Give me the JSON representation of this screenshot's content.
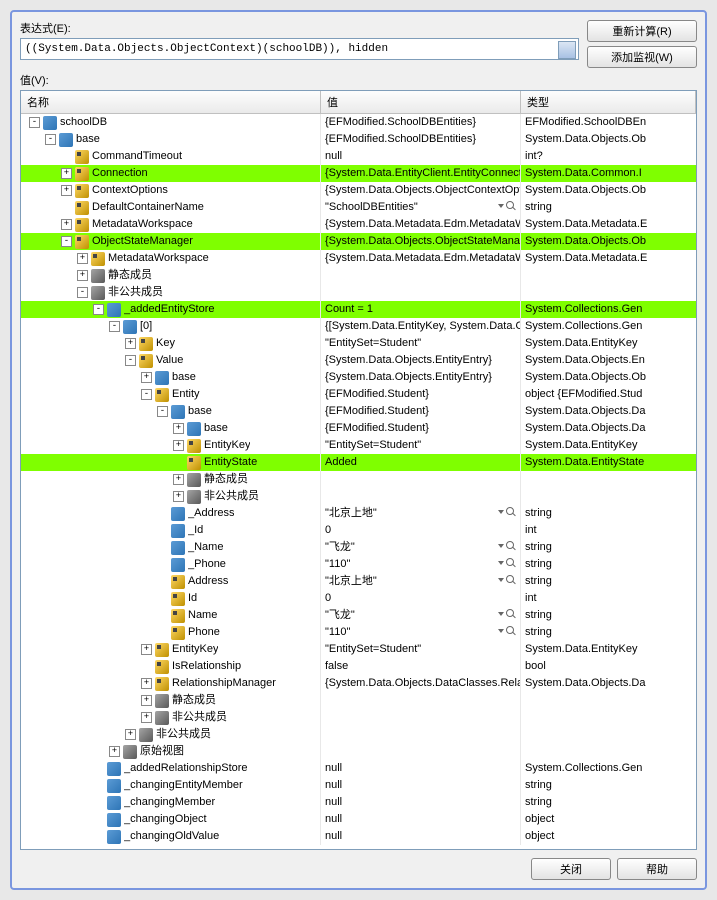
{
  "labels": {
    "expression": "表达式(E):",
    "value": "值(V):",
    "recalculate": "重新计算(R)",
    "addwatch": "添加监视(W)",
    "close": "关闭",
    "help": "帮助"
  },
  "expression_text": "((System.Data.Objects.ObjectContext)(schoolDB)), hidden",
  "columns": {
    "name": "名称",
    "value": "值",
    "type": "类型"
  },
  "highlight_color": "#7fff00",
  "rows": [
    {
      "depth": 0,
      "exp": "-",
      "icon": "field",
      "name": "schoolDB",
      "value": "{EFModified.SchoolDBEntities}",
      "type": "EFModified.SchoolDBEn"
    },
    {
      "depth": 1,
      "exp": "-",
      "icon": "field",
      "name": "base",
      "value": "{EFModified.SchoolDBEntities}",
      "type": "System.Data.Objects.Ob"
    },
    {
      "depth": 2,
      "exp": "",
      "icon": "prop",
      "name": "CommandTimeout",
      "value": "null",
      "type": "int?"
    },
    {
      "depth": 2,
      "exp": "+",
      "icon": "prop",
      "name": "Connection",
      "value": "{System.Data.EntityClient.EntityConnecti",
      "type": "System.Data.Common.I",
      "hl": true
    },
    {
      "depth": 2,
      "exp": "+",
      "icon": "prop",
      "name": "ContextOptions",
      "value": "{System.Data.Objects.ObjectContextOpti",
      "type": "System.Data.Objects.Ob"
    },
    {
      "depth": 2,
      "exp": "",
      "icon": "prop",
      "name": "DefaultContainerName",
      "value": "\"SchoolDBEntities\"",
      "type": "string",
      "mag": true
    },
    {
      "depth": 2,
      "exp": "+",
      "icon": "prop",
      "name": "MetadataWorkspace",
      "value": "{System.Data.Metadata.Edm.MetadataW",
      "type": "System.Data.Metadata.E"
    },
    {
      "depth": 2,
      "exp": "-",
      "icon": "prop",
      "name": "ObjectStateManager",
      "value": "{System.Data.Objects.ObjectStateManag",
      "type": "System.Data.Objects.Ob",
      "hl": true
    },
    {
      "depth": 3,
      "exp": "+",
      "icon": "prop",
      "name": "MetadataWorkspace",
      "value": "{System.Data.Metadata.Edm.MetadataW",
      "type": "System.Data.Metadata.E"
    },
    {
      "depth": 3,
      "exp": "+",
      "icon": "category",
      "name": "静态成员",
      "value": "",
      "type": ""
    },
    {
      "depth": 3,
      "exp": "-",
      "icon": "category",
      "name": "非公共成员",
      "value": "",
      "type": ""
    },
    {
      "depth": 4,
      "exp": "-",
      "icon": "field",
      "name": "_addedEntityStore",
      "value": "Count = 1",
      "type": "System.Collections.Gen",
      "hl": true
    },
    {
      "depth": 5,
      "exp": "-",
      "icon": "field",
      "name": "[0]",
      "value": "{[System.Data.EntityKey, System.Data.Ob",
      "type": "System.Collections.Gen"
    },
    {
      "depth": 6,
      "exp": "+",
      "icon": "prop",
      "name": "Key",
      "value": "\"EntitySet=Student\"",
      "type": "System.Data.EntityKey"
    },
    {
      "depth": 6,
      "exp": "-",
      "icon": "prop",
      "name": "Value",
      "value": "{System.Data.Objects.EntityEntry}",
      "type": "System.Data.Objects.En"
    },
    {
      "depth": 7,
      "exp": "+",
      "icon": "field",
      "name": "base",
      "value": "{System.Data.Objects.EntityEntry}",
      "type": "System.Data.Objects.Ob"
    },
    {
      "depth": 7,
      "exp": "-",
      "icon": "prop",
      "name": "Entity",
      "value": "{EFModified.Student}",
      "type": "object {EFModified.Stud"
    },
    {
      "depth": 8,
      "exp": "-",
      "icon": "field",
      "name": "base",
      "value": "{EFModified.Student}",
      "type": "System.Data.Objects.Da"
    },
    {
      "depth": 9,
      "exp": "+",
      "icon": "field",
      "name": "base",
      "value": "{EFModified.Student}",
      "type": "System.Data.Objects.Da"
    },
    {
      "depth": 9,
      "exp": "+",
      "icon": "prop",
      "name": "EntityKey",
      "value": "\"EntitySet=Student\"",
      "type": "System.Data.EntityKey"
    },
    {
      "depth": 9,
      "exp": "",
      "icon": "prop",
      "name": "EntityState",
      "value": "Added",
      "type": "System.Data.EntityState",
      "hl": true
    },
    {
      "depth": 9,
      "exp": "+",
      "icon": "category",
      "name": "静态成员",
      "value": "",
      "type": ""
    },
    {
      "depth": 9,
      "exp": "+",
      "icon": "category",
      "name": "非公共成员",
      "value": "",
      "type": ""
    },
    {
      "depth": 8,
      "exp": "",
      "icon": "field",
      "name": "_Address",
      "value": "\"北京上地\"",
      "type": "string",
      "mag": true
    },
    {
      "depth": 8,
      "exp": "",
      "icon": "field",
      "name": "_Id",
      "value": "0",
      "type": "int"
    },
    {
      "depth": 8,
      "exp": "",
      "icon": "field",
      "name": "_Name",
      "value": "\"飞龙\"",
      "type": "string",
      "mag": true
    },
    {
      "depth": 8,
      "exp": "",
      "icon": "field",
      "name": "_Phone",
      "value": "\"110\"",
      "type": "string",
      "mag": true
    },
    {
      "depth": 8,
      "exp": "",
      "icon": "prop",
      "name": "Address",
      "value": "\"北京上地\"",
      "type": "string",
      "mag": true
    },
    {
      "depth": 8,
      "exp": "",
      "icon": "prop",
      "name": "Id",
      "value": "0",
      "type": "int"
    },
    {
      "depth": 8,
      "exp": "",
      "icon": "prop",
      "name": "Name",
      "value": "\"飞龙\"",
      "type": "string",
      "mag": true
    },
    {
      "depth": 8,
      "exp": "",
      "icon": "prop",
      "name": "Phone",
      "value": "\"110\"",
      "type": "string",
      "mag": true
    },
    {
      "depth": 7,
      "exp": "+",
      "icon": "prop",
      "name": "EntityKey",
      "value": "\"EntitySet=Student\"",
      "type": "System.Data.EntityKey"
    },
    {
      "depth": 7,
      "exp": "",
      "icon": "prop",
      "name": "IsRelationship",
      "value": "false",
      "type": "bool"
    },
    {
      "depth": 7,
      "exp": "+",
      "icon": "prop",
      "name": "RelationshipManager",
      "value": "{System.Data.Objects.DataClasses.Relatic",
      "type": "System.Data.Objects.Da"
    },
    {
      "depth": 7,
      "exp": "+",
      "icon": "category",
      "name": "静态成员",
      "value": "",
      "type": ""
    },
    {
      "depth": 7,
      "exp": "+",
      "icon": "category",
      "name": "非公共成员",
      "value": "",
      "type": ""
    },
    {
      "depth": 6,
      "exp": "+",
      "icon": "category",
      "name": "非公共成员",
      "value": "",
      "type": ""
    },
    {
      "depth": 5,
      "exp": "+",
      "icon": "category",
      "name": "原始视图",
      "value": "",
      "type": ""
    },
    {
      "depth": 4,
      "exp": "",
      "icon": "field",
      "name": "_addedRelationshipStore",
      "value": "null",
      "type": "System.Collections.Gen"
    },
    {
      "depth": 4,
      "exp": "",
      "icon": "field",
      "name": "_changingEntityMember",
      "value": "null",
      "type": "string"
    },
    {
      "depth": 4,
      "exp": "",
      "icon": "field",
      "name": "_changingMember",
      "value": "null",
      "type": "string"
    },
    {
      "depth": 4,
      "exp": "",
      "icon": "field",
      "name": "_changingObject",
      "value": "null",
      "type": "object"
    },
    {
      "depth": 4,
      "exp": "",
      "icon": "field",
      "name": "_changingOldValue",
      "value": "null",
      "type": "object"
    }
  ]
}
